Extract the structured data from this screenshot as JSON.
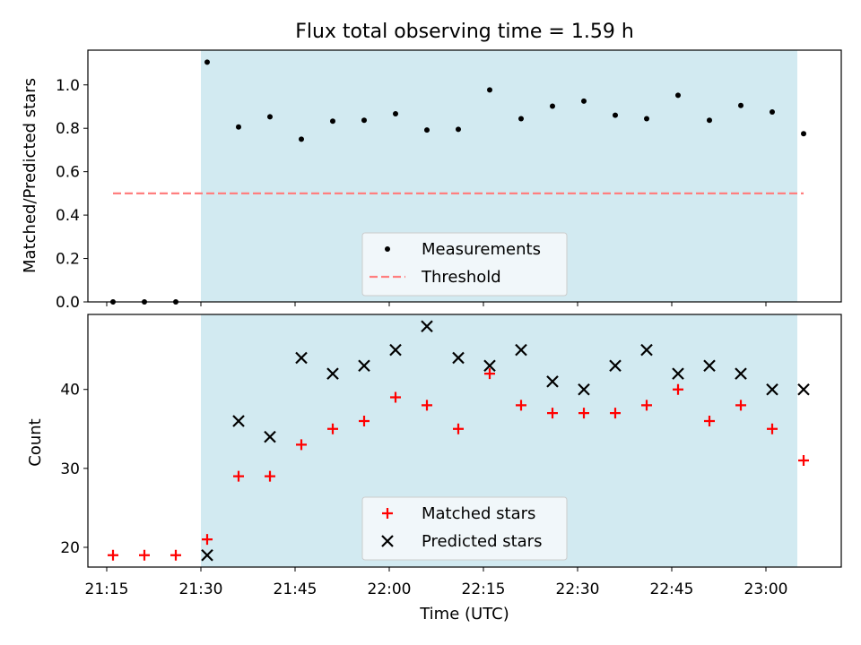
{
  "title": "Flux total observing time = 1.59 h",
  "colors": {
    "shade": "#add8e6",
    "measurement": "#000000",
    "threshold": "#ff7f7f",
    "matched": "#ff0000",
    "predicted": "#000000",
    "legend_bg": "#f7f9fc"
  },
  "chart_data": [
    {
      "type": "scatter",
      "panel": "top",
      "title": "Flux total observing time = 1.59 h",
      "xlabel": "",
      "ylabel": "Matched/Predicted stars",
      "xlim": [
        "21:12",
        "23:12"
      ],
      "ylim": [
        0,
        1.16
      ],
      "yticks": [
        0.0,
        0.2,
        0.4,
        0.6,
        0.8,
        1.0
      ],
      "ytick_labels": [
        "0.0",
        "0.2",
        "0.4",
        "0.6",
        "0.8",
        "1.0"
      ],
      "observing_window": [
        "21:30",
        "23:05"
      ],
      "x": [
        "21:16",
        "21:21",
        "21:26",
        "21:31",
        "21:36",
        "21:41",
        "21:46",
        "21:51",
        "21:56",
        "22:01",
        "22:06",
        "22:11",
        "22:16",
        "22:21",
        "22:26",
        "22:31",
        "22:36",
        "22:41",
        "22:46",
        "22:51",
        "22:56",
        "23:01",
        "23:06"
      ],
      "series": [
        {
          "name": "Measurements",
          "marker": "dot",
          "values": [
            0,
            0,
            0,
            1.105,
            0.806,
            0.853,
            0.75,
            0.833,
            0.837,
            0.867,
            0.792,
            0.795,
            0.977,
            0.844,
            0.902,
            0.925,
            0.86,
            0.844,
            0.952,
            0.837,
            0.905,
            0.875,
            0.775
          ]
        },
        {
          "name": "Threshold",
          "style": "dashed",
          "x": [
            "21:16",
            "23:06"
          ],
          "values": [
            0.5,
            0.5
          ]
        }
      ],
      "legend": {
        "placement": "lower center",
        "entries": [
          "Measurements",
          "Threshold"
        ]
      }
    },
    {
      "type": "scatter",
      "panel": "bottom",
      "xlabel": "Time (UTC)",
      "ylabel": "Count",
      "xlim": [
        "21:12",
        "23:12"
      ],
      "ylim": [
        17.5,
        49.5
      ],
      "yticks": [
        20,
        30,
        40
      ],
      "ytick_labels": [
        "20",
        "30",
        "40"
      ],
      "xticks": [
        "21:15",
        "21:30",
        "21:45",
        "22:00",
        "22:15",
        "22:30",
        "22:45",
        "23:00"
      ],
      "observing_window": [
        "21:30",
        "23:05"
      ],
      "x": [
        "21:16",
        "21:21",
        "21:26",
        "21:31",
        "21:36",
        "21:41",
        "21:46",
        "21:51",
        "21:56",
        "22:01",
        "22:06",
        "22:11",
        "22:16",
        "22:21",
        "22:26",
        "22:31",
        "22:36",
        "22:41",
        "22:46",
        "22:51",
        "22:56",
        "23:01",
        "23:06"
      ],
      "series": [
        {
          "name": "Matched stars",
          "marker": "plus",
          "values": [
            19,
            19,
            19,
            21,
            29,
            29,
            33,
            35,
            36,
            39,
            38,
            35,
            42,
            38,
            37,
            37,
            37,
            38,
            40,
            36,
            38,
            35,
            31
          ]
        },
        {
          "name": "Predicted stars",
          "marker": "x",
          "x": [
            "21:31",
            "21:36",
            "21:41",
            "21:46",
            "21:51",
            "21:56",
            "22:01",
            "22:06",
            "22:11",
            "22:16",
            "22:21",
            "22:26",
            "22:31",
            "22:36",
            "22:41",
            "22:46",
            "22:51",
            "22:56",
            "23:01",
            "23:06"
          ],
          "values": [
            19,
            36,
            34,
            44,
            42,
            43,
            45,
            48,
            44,
            43,
            45,
            41,
            40,
            43,
            45,
            42,
            43,
            42,
            40,
            40
          ]
        }
      ],
      "legend": {
        "placement": "lower center",
        "entries": [
          "Matched stars",
          "Predicted stars"
        ]
      }
    }
  ]
}
